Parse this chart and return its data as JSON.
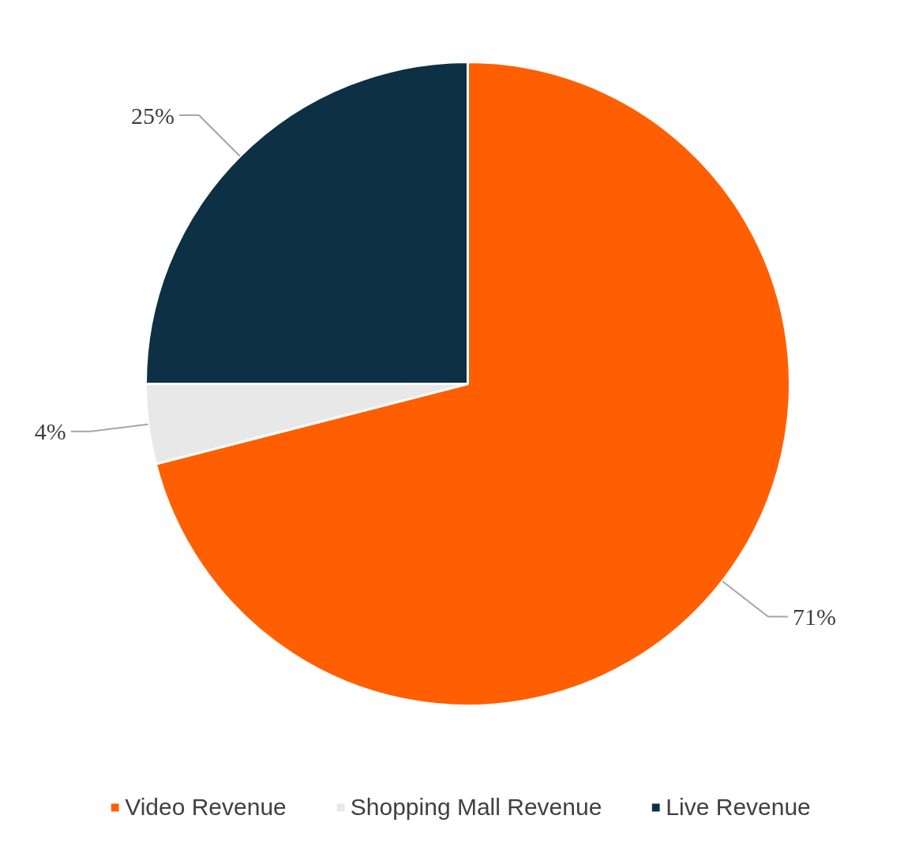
{
  "chart_data": {
    "type": "pie",
    "categories": [
      "Video Revenue",
      "Shopping Mall Revenue",
      "Live Revenue"
    ],
    "values": [
      71,
      4,
      25
    ],
    "colors": [
      "#ff5f00",
      "#e8e8e8",
      "#0d3044"
    ],
    "value_labels": [
      "71%",
      "4%",
      "25%"
    ],
    "legend": "bottom"
  }
}
